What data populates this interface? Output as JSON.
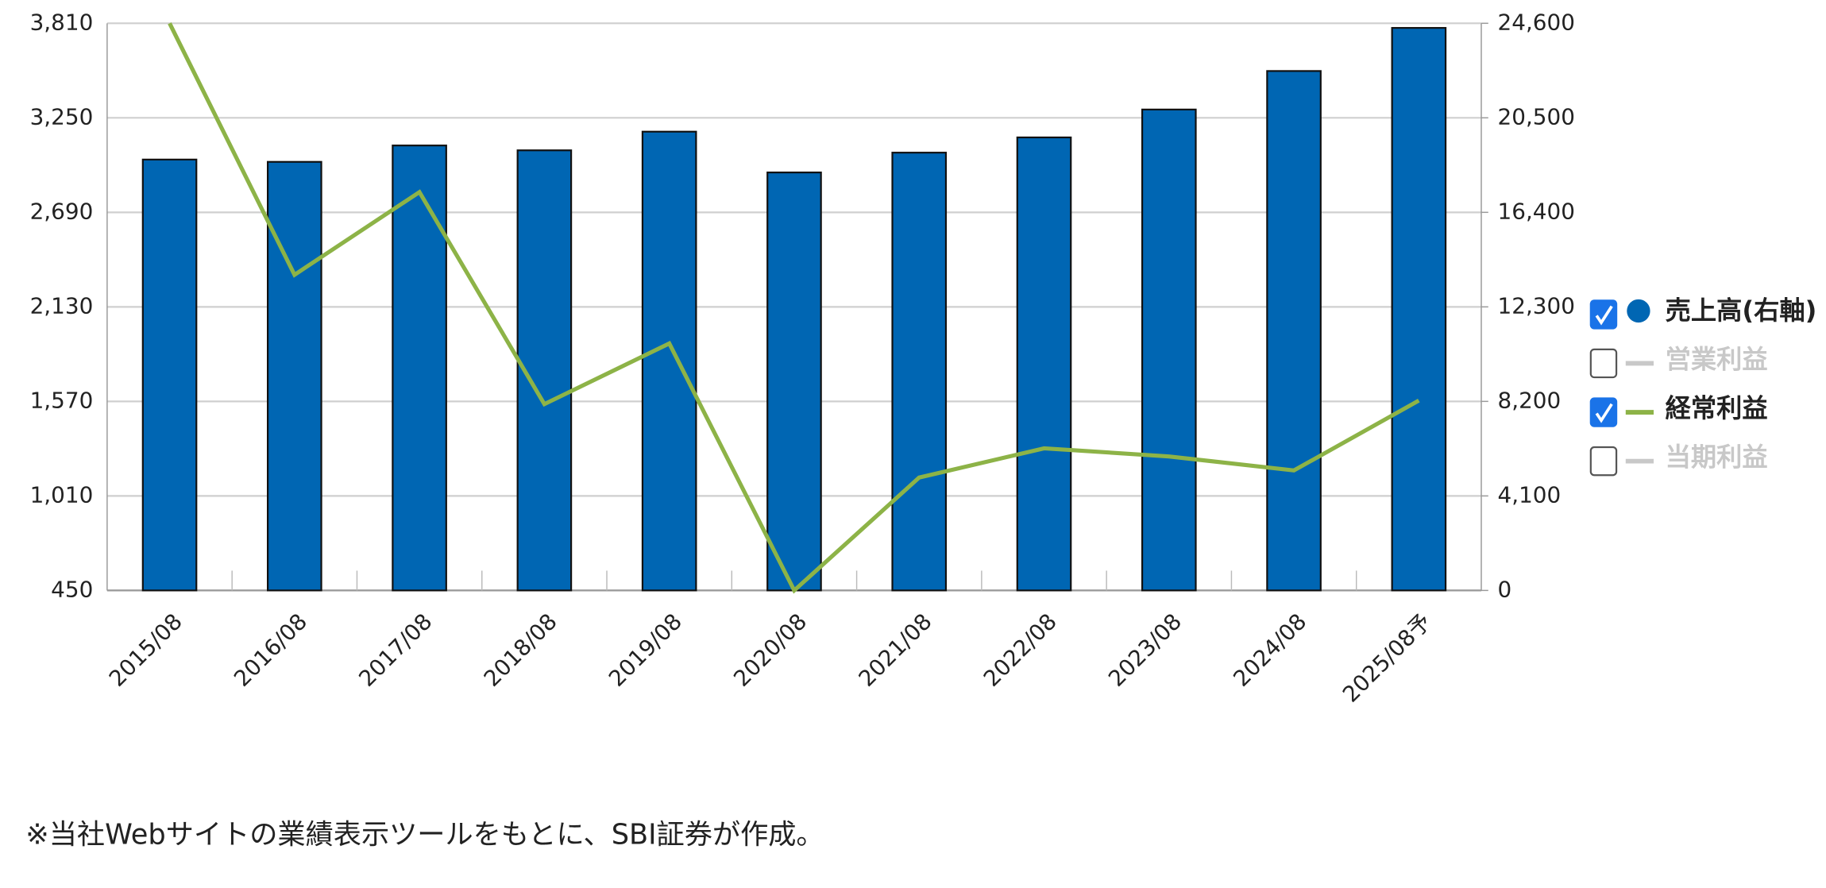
{
  "chart_data": {
    "type": "bar-line",
    "categories": [
      "2015/08",
      "2016/08",
      "2017/08",
      "2018/08",
      "2019/08",
      "2020/08",
      "2021/08",
      "2022/08",
      "2023/08",
      "2024/08",
      "2025/08予"
    ],
    "series": [
      {
        "name": "売上高(右軸)",
        "type": "bar",
        "axis": "y2",
        "color": "#0066b3",
        "checked": true,
        "values": [
          18690,
          18590,
          19300,
          19090,
          19900,
          18130,
          18990,
          19650,
          20860,
          22530,
          24400
        ]
      },
      {
        "name": "営業利益",
        "type": "line",
        "color": "#c8c8c8",
        "checked": false
      },
      {
        "name": "経常利益",
        "type": "line",
        "color": "#8db347",
        "checked": true,
        "values": [
          3810,
          2320,
          2810,
          1554,
          1913,
          450,
          1119,
          1292,
          1244,
          1161,
          1575
        ]
      },
      {
        "name": "当期利益",
        "type": "line",
        "color": "#c8c8c8",
        "checked": false
      }
    ],
    "ylim": [
      450,
      3810
    ],
    "yticks": [
      450,
      {
        "value": 1010,
        "label": "1,010"
      },
      {
        "value": 1570,
        "label": "1,570"
      },
      {
        "value": 2130,
        "label": "2,130"
      },
      {
        "value": 2690,
        "label": "2,690"
      },
      {
        "value": 3250,
        "label": "3,250"
      },
      {
        "value": 3810,
        "label": "3,810"
      }
    ],
    "y2lim": [
      0,
      24600
    ],
    "y2ticks": [
      0,
      {
        "value": 4100,
        "label": "4,100"
      },
      {
        "value": 8200,
        "label": "8,200"
      },
      {
        "value": 12300,
        "label": "12,300"
      },
      {
        "value": 16400,
        "label": "16,400"
      },
      {
        "value": 20500,
        "label": "20,500"
      },
      {
        "value": 24600,
        "label": "24,600"
      }
    ],
    "grid": true,
    "note": "※当社Webサイトの業績表示ツールをもとに、SBI証券が作成。"
  }
}
